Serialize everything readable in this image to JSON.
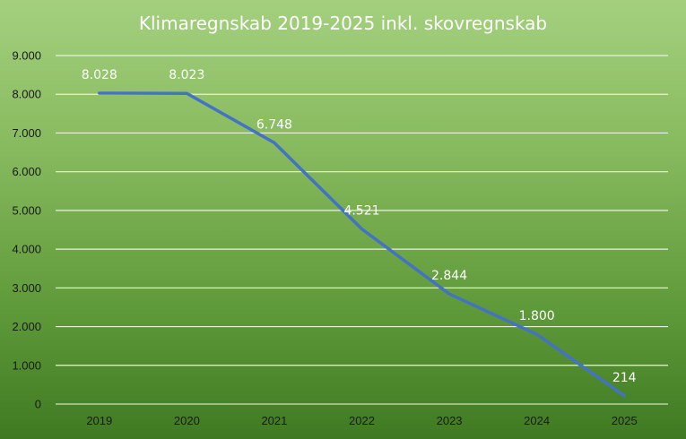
{
  "chart_data": {
    "type": "line",
    "title": "Klimaregnskab 2019-2025 inkl. skovregnskab",
    "xlabel": "",
    "ylabel": "",
    "categories": [
      "2019",
      "2020",
      "2021",
      "2022",
      "2023",
      "2024",
      "2025"
    ],
    "series": [
      {
        "values": [
          8028,
          8023,
          6748,
          4521,
          2844,
          1800,
          214
        ],
        "value_labels": [
          "8.028",
          "8.023",
          "6.748",
          "4.521",
          "2.844",
          "1.800",
          "214"
        ],
        "color": "#4472c4"
      }
    ],
    "ylim": [
      0,
      9000
    ],
    "y_ticks": [
      0,
      1000,
      2000,
      3000,
      4000,
      5000,
      6000,
      7000,
      8000,
      9000
    ],
    "y_tick_labels": [
      "0",
      "1.000",
      "2.000",
      "3.000",
      "4.000",
      "5.000",
      "6.000",
      "7.000",
      "8.000",
      "9.000"
    ],
    "grid": true,
    "legend": false
  }
}
